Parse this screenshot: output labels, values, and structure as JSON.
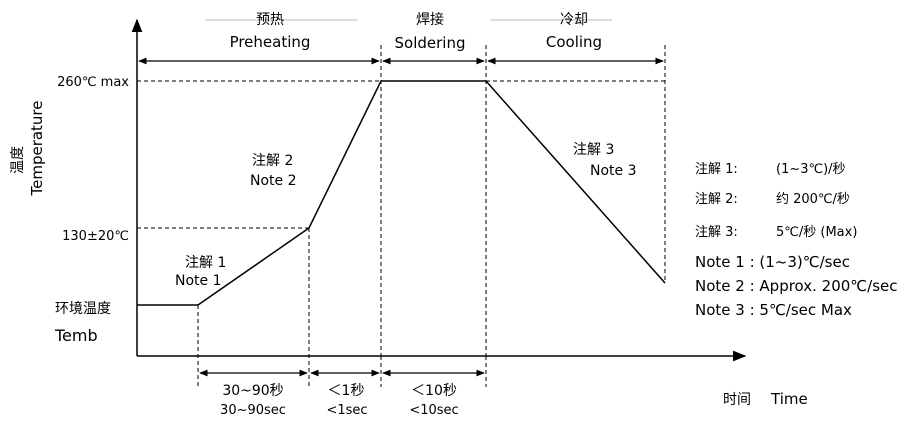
{
  "phases": {
    "preheat": {
      "zh": "预热",
      "en": "Preheating"
    },
    "solder": {
      "zh": "焊接",
      "en": "Soldering"
    },
    "cool": {
      "zh": "冷却",
      "en": "Cooling"
    }
  },
  "axis": {
    "y_zh": "温度",
    "y_en": "Temperature",
    "x_zh": "时间",
    "x_en": "Time"
  },
  "levels": {
    "peak": "260℃ max",
    "soak": "130±20℃",
    "ambient_zh": "环境温度",
    "ambient_en": "Temb"
  },
  "slope_labels": {
    "note1_zh": "注解 1",
    "note1_en": "Note 1",
    "note2_zh": "注解 2",
    "note2_en": "Note 2",
    "note3_zh": "注解 3",
    "note3_en": "Note 3"
  },
  "durations": [
    {
      "zh": "30~90秒",
      "en": "30~90sec"
    },
    {
      "zh": "＜1秒",
      "en": "<1sec"
    },
    {
      "zh": "＜10秒",
      "en": "<10sec"
    }
  ],
  "legend_zh": [
    {
      "label": "注解 1:",
      "value": "(1~3℃)/秒"
    },
    {
      "label": "注解 2:",
      "value": "约 200℃/秒"
    },
    {
      "label": "注解 3:",
      "value": "5℃/秒  (Max)"
    }
  ],
  "legend_en": [
    "Note 1 : (1~3)℃/sec",
    "Note 2 : Approx. 200℃/sec",
    "Note 3 : 5℃/sec  Max"
  ]
}
